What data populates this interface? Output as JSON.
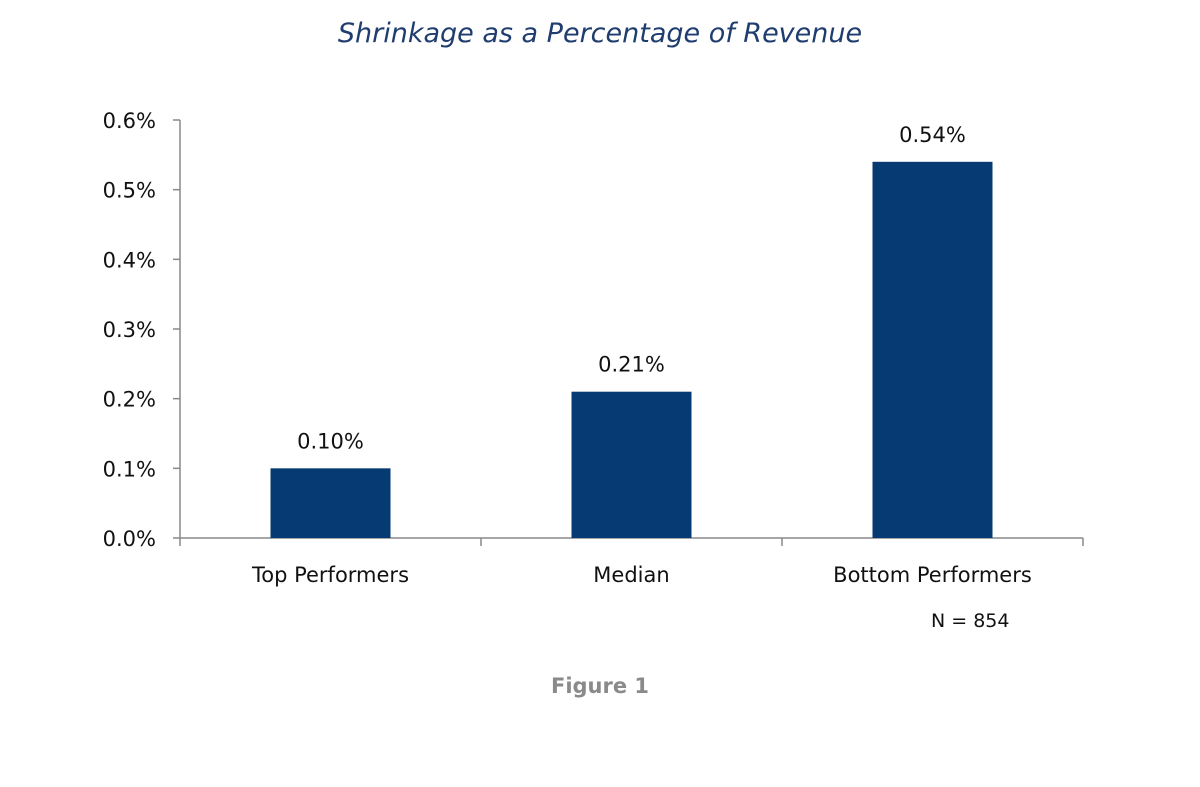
{
  "chart_data": {
    "type": "bar",
    "title": "Shrinkage as a Percentage of Revenue",
    "categories": [
      "Top Performers",
      "Median",
      "Bottom Performers"
    ],
    "values": [
      0.1,
      0.21,
      0.54
    ],
    "data_labels": [
      "0.10%",
      "0.21%",
      "0.54%"
    ],
    "y_ticks": [
      0.0,
      0.1,
      0.2,
      0.3,
      0.4,
      0.5,
      0.6
    ],
    "y_tick_labels": [
      "0.0%",
      "0.1%",
      "0.2%",
      "0.3%",
      "0.4%",
      "0.5%",
      "0.6%"
    ],
    "ylim": [
      0,
      0.6
    ],
    "y_unit": "%",
    "xlabel": "",
    "ylabel": "",
    "grid": false,
    "legend": "none",
    "bar_color": "#053b72",
    "axis_color": "#888888"
  },
  "note": "N = 854",
  "caption": "Figure 1",
  "colors": {
    "title": "#1f3d6e",
    "caption": "#8a8a8a"
  }
}
